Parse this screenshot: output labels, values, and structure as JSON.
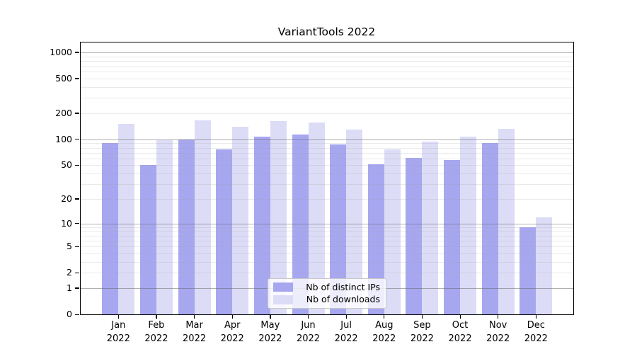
{
  "title": "VariantTools 2022",
  "chart_data": {
    "type": "bar",
    "title": "VariantTools 2022",
    "categories": [
      "Jan 2022",
      "Feb 2022",
      "Mar 2022",
      "Apr 2022",
      "May 2022",
      "Jun 2022",
      "Jul 2022",
      "Aug 2022",
      "Sep 2022",
      "Oct 2022",
      "Nov 2022",
      "Dec 2022"
    ],
    "series": [
      {
        "name": "Nb of distinct IPs",
        "color": "#a7a7f0",
        "values": [
          90,
          50,
          100,
          76,
          107,
          113,
          88,
          51,
          61,
          57,
          91,
          9
        ]
      },
      {
        "name": "Nb of downloads",
        "color": "#dcdcf7",
        "values": [
          151,
          98,
          165,
          139,
          162,
          156,
          129,
          76,
          94,
          107,
          133,
          12
        ]
      }
    ],
    "y_axis": {
      "scale": "log10(1+value)",
      "tick_labels": [
        "1000",
        "500",
        "200",
        "100",
        "50",
        "20",
        "10",
        "5",
        "2",
        "1",
        "0"
      ],
      "tick_values": [
        1000,
        500,
        200,
        100,
        50,
        20,
        10,
        5,
        2,
        1,
        0
      ],
      "major_grid_values": [
        1,
        10,
        100,
        1000
      ],
      "minor_grid_values": [
        2,
        3,
        4,
        5,
        6,
        7,
        8,
        9,
        20,
        30,
        40,
        50,
        60,
        70,
        80,
        90,
        200,
        300,
        400,
        500,
        600,
        700,
        800,
        900
      ]
    },
    "x_axis": {
      "label_year": "2022"
    },
    "legend": {
      "position": "inside-bottom-center",
      "items": [
        "Nb of distinct IPs",
        "Nb of downloads"
      ]
    },
    "grid": "on"
  },
  "colors": {
    "bar_distinct_ips": "#a7a7f0",
    "bar_downloads": "#dcdcf7",
    "major_grid": "#b3b3b3",
    "minor_grid": "#e3e3e3",
    "axis": "#000000",
    "background": "#ffffff",
    "legend_border": "#c8c8c8"
  }
}
